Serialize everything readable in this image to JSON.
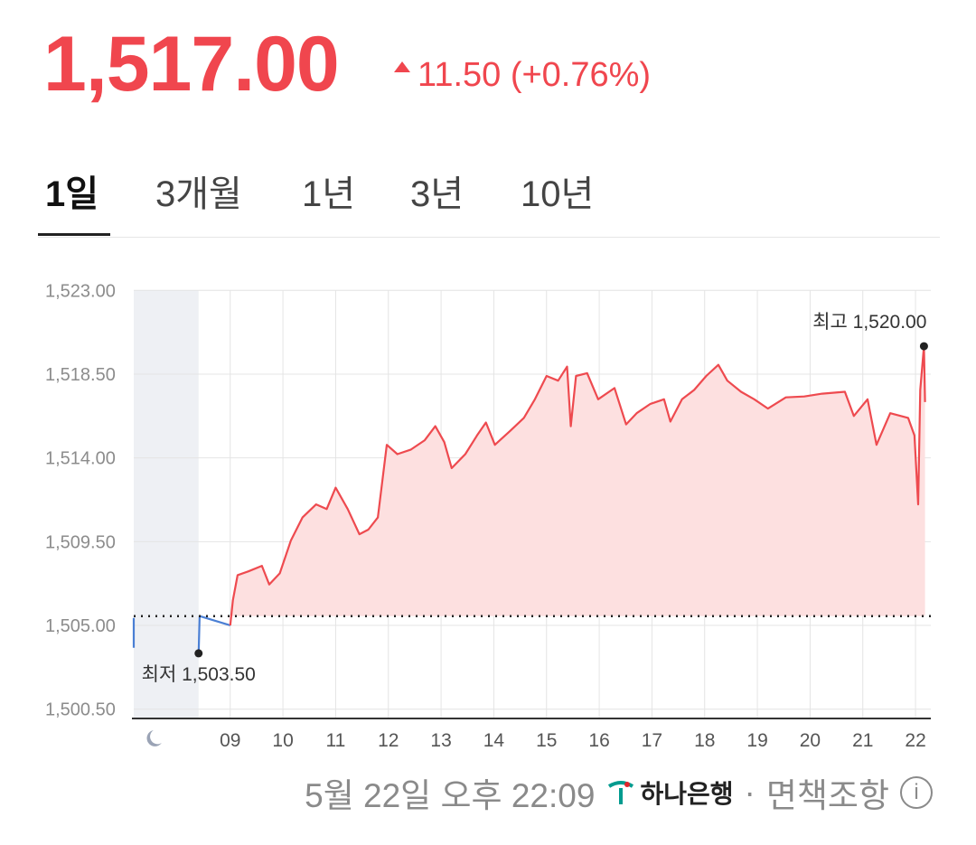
{
  "header": {
    "price": "1,517.00",
    "change": "11.50 (+0.76%)"
  },
  "tabs": {
    "items": [
      "1일",
      "3개월",
      "1년",
      "3년",
      "10년"
    ],
    "active": 0
  },
  "chart_data": {
    "type": "line",
    "xlim": [
      7.17,
      22.29
    ],
    "ylim": [
      1500.0,
      1523.5
    ],
    "xticks": [
      {
        "value": 9,
        "label": "09"
      },
      10,
      11,
      12,
      13,
      14,
      15,
      16,
      17,
      18,
      19,
      20,
      21,
      22
    ],
    "yticks": [
      {
        "value": 1523,
        "label": "1,523.00"
      },
      {
        "value": 1518.5,
        "label": "1,518.50"
      },
      {
        "value": 1514,
        "label": "1,514.00"
      },
      {
        "value": 1509.5,
        "label": "1,509.50"
      },
      {
        "value": 1505,
        "label": "1,505.00"
      },
      {
        "value": 1500.5,
        "label": "1,500.50"
      }
    ],
    "grid": true,
    "baseline": 1505.5,
    "shade": {
      "x": [
        7.17,
        8.4
      ],
      "color": "#eef0f4"
    },
    "series": [
      {
        "color": "#4a7fd4",
        "area": false,
        "x": [
          7.17,
          7.17,
          7.8,
          8.4,
          8.42,
          9.0
        ],
        "values": [
          1505.4,
          1503.8,
          null,
          1503.5,
          1505.5,
          1505.0
        ]
      },
      {
        "color": "#ee4a4f",
        "area": true,
        "area_color": "#fde0e0",
        "x": [
          9.0,
          9.05,
          9.14,
          9.34,
          9.6,
          9.74,
          9.94,
          10.15,
          10.37,
          10.63,
          10.83,
          11.0,
          11.23,
          11.45,
          11.62,
          11.8,
          11.97,
          12.17,
          12.43,
          12.69,
          12.89,
          13.06,
          13.2,
          13.46,
          13.68,
          13.85,
          14.02,
          14.31,
          14.57,
          14.78,
          15.0,
          15.22,
          15.39,
          15.46,
          15.56,
          15.77,
          15.98,
          16.29,
          16.51,
          16.71,
          16.97,
          17.23,
          17.35,
          17.57,
          17.8,
          18.03,
          18.26,
          18.43,
          18.69,
          18.94,
          19.2,
          19.54,
          19.89,
          20.23,
          20.66,
          20.83,
          21.09,
          21.26,
          21.52,
          21.86,
          21.98,
          22.05,
          22.09,
          22.16,
          22.18
        ],
        "values": [
          1505.0,
          1506.35,
          1507.7,
          1507.9,
          1508.2,
          1507.2,
          1507.8,
          1509.55,
          1510.8,
          1511.5,
          1511.25,
          1512.4,
          1511.25,
          1509.9,
          1510.15,
          1510.8,
          1514.7,
          1514.2,
          1514.45,
          1514.95,
          1515.7,
          1514.85,
          1513.45,
          1514.2,
          1515.2,
          1515.9,
          1514.7,
          1515.45,
          1516.15,
          1517.15,
          1518.4,
          1518.15,
          1518.9,
          1515.7,
          1518.4,
          1518.55,
          1517.15,
          1517.75,
          1515.8,
          1516.4,
          1516.9,
          1517.15,
          1515.95,
          1517.15,
          1517.65,
          1518.4,
          1519.0,
          1518.15,
          1517.55,
          1517.15,
          1516.65,
          1517.25,
          1517.3,
          1517.45,
          1517.55,
          1516.25,
          1517.15,
          1514.7,
          1516.4,
          1516.15,
          1515.2,
          1511.5,
          1517.65,
          1520.0,
          1517.0
        ]
      }
    ],
    "annotations": [
      {
        "text": "최고 1,520.00",
        "x": 22.16,
        "y": 1520.0,
        "anchor": "end",
        "side": "above"
      },
      {
        "text": "최저 1,503.50",
        "x": 8.4,
        "y": 1503.5,
        "anchor": "middle",
        "side": "below"
      }
    ]
  },
  "footer": {
    "timestamp": "5월 22일 오후 22:09",
    "bank": "하나은행",
    "disclaimer": "면책조항"
  }
}
